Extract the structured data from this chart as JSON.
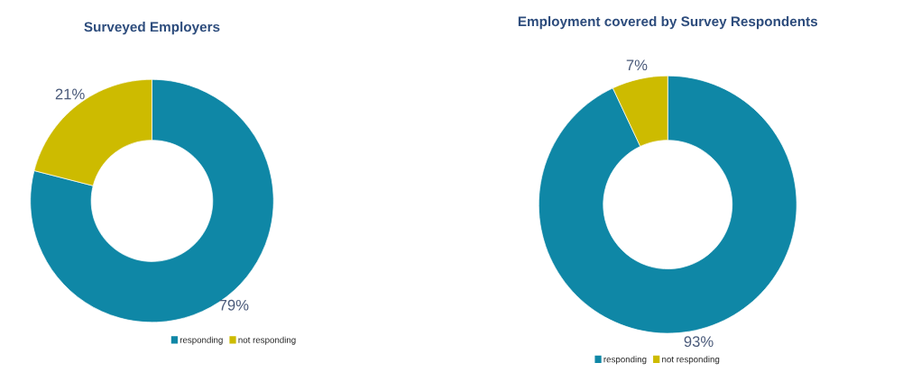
{
  "chart_data": [
    {
      "type": "donut",
      "title": "Surveyed Employers",
      "categories": [
        "responding",
        "not responding"
      ],
      "values": [
        79,
        21
      ],
      "colors": [
        "#0f87a6",
        "#cdbb00"
      ],
      "value_labels": [
        "79%",
        "21%"
      ],
      "legend": "bottom right"
    },
    {
      "type": "donut",
      "title": "Employment covered by Survey Respondents",
      "categories": [
        "responding",
        "not responding"
      ],
      "values": [
        93,
        7
      ],
      "colors": [
        "#0f87a6",
        "#cdbb00"
      ],
      "value_labels": [
        "93%",
        "7%"
      ],
      "legend": "bottom right"
    }
  ]
}
